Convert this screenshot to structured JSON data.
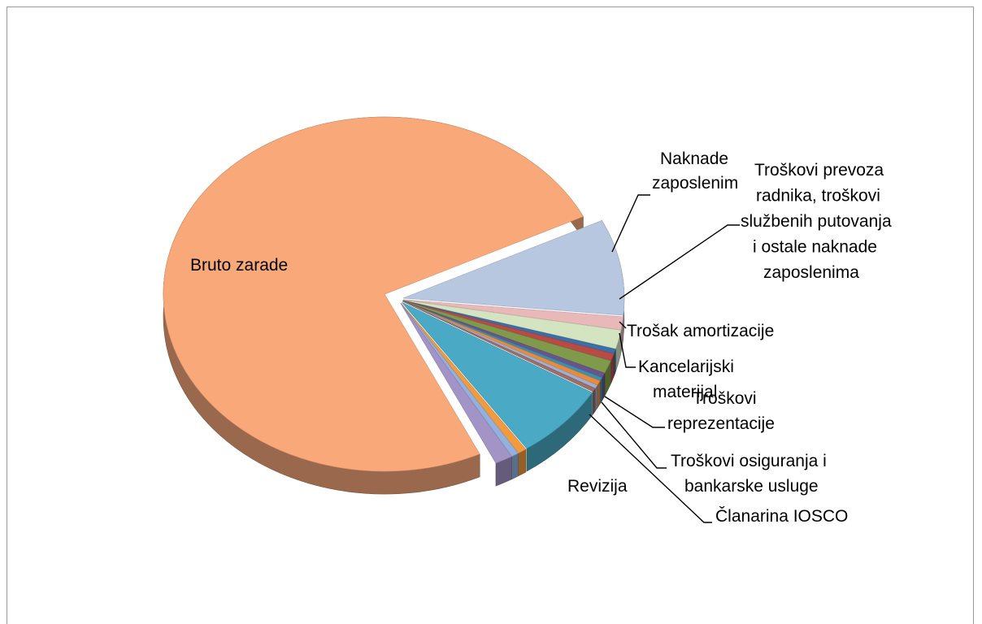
{
  "chart_data": {
    "type": "pie",
    "title": "",
    "style": "3d-exploded",
    "legend": "none",
    "slices": [
      {
        "label": "Bruto zarade",
        "lines": [
          "Bruto zarade"
        ],
        "value": 70.0,
        "color": "#f9a87a"
      },
      {
        "label": "Naknade zaposlenim",
        "lines": [
          "Naknade",
          "zaposlenim"
        ],
        "value": 8.2,
        "color": "#b8c7e0"
      },
      {
        "label": "Troškovi prevoza radnika, troškovi službenih putovanja i ostale naknade zaposlenima",
        "lines": [
          "Troškovi prevoza",
          "radnika, troškovi",
          "službenih putovanja",
          "i ostale naknade",
          "zaposlenima"
        ],
        "value": 1.1,
        "color": "#e9b8b8"
      },
      {
        "label": "",
        "lines": [],
        "value": 1.6,
        "color": "#d4e4c0"
      },
      {
        "label": "Trošak amortizacije",
        "lines": [
          "Trošak amortizacije"
        ],
        "value": 0.4,
        "color": "#3a6fa8"
      },
      {
        "label": "Kancelarijski materijal",
        "lines": [
          "Kancelarijski",
          "materijal"
        ],
        "value": 0.6,
        "color": "#b84b46"
      },
      {
        "label": "",
        "lines": [],
        "value": 1.1,
        "color": "#7f9a4a"
      },
      {
        "label": "",
        "lines": [],
        "value": 0.4,
        "color": "#6a548c"
      },
      {
        "label": "",
        "lines": [],
        "value": 0.3,
        "color": "#3b8fb0"
      },
      {
        "label": "Troškovi reprezentacije",
        "lines": [
          "Troškovi",
          "reprezentacije"
        ],
        "value": 0.4,
        "color": "#e98b3a"
      },
      {
        "label": "Troškovi osiguranja i bankarske usluge",
        "lines": [
          "Troškovi osiguranja i",
          "bankarske usluge"
        ],
        "value": 0.3,
        "color": "#a0aed0"
      },
      {
        "label": "Članarina IOSCO",
        "lines": [
          "Članarina  IOSCO"
        ],
        "value": 0.3,
        "color": "#9c6f69"
      },
      {
        "label": "",
        "lines": [],
        "value": 6.5,
        "color": "#4aa9c4"
      },
      {
        "label": "",
        "lines": [],
        "value": 0.6,
        "color": "#f29a3e"
      },
      {
        "label": "",
        "lines": [],
        "value": 0.5,
        "color": "#93b1dc"
      },
      {
        "label": "Revizija",
        "lines": [
          "Revizija"
        ],
        "value": 1.2,
        "color": "#a394c8"
      }
    ]
  }
}
